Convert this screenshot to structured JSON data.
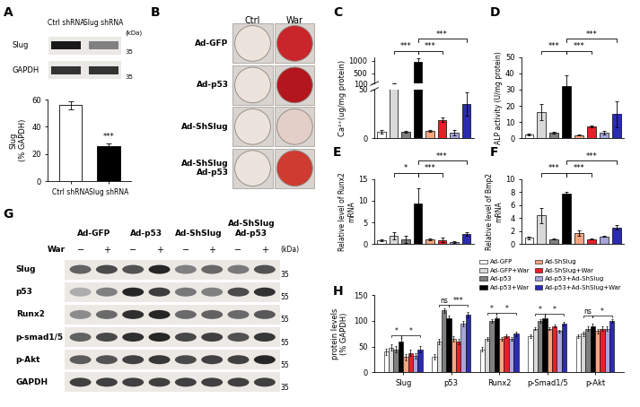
{
  "chart_data": [
    {
      "panel_label": "A",
      "type": "bar",
      "categories": [
        "Ctrl shRNA",
        "Slug shRNA"
      ],
      "values": [
        56,
        26
      ],
      "errors": [
        3,
        2
      ],
      "colors": [
        "#ffffff",
        "#000000"
      ],
      "ylabel": "Slug\n(% GAPDH)",
      "ylim": [
        0,
        60
      ],
      "yticks": [
        0,
        20,
        40,
        60
      ],
      "annotations": [
        {
          "text": "***",
          "category": "Slug shRNA"
        }
      ]
    },
    {
      "panel_label": "C",
      "type": "bar",
      "categories": [
        null,
        null,
        null,
        null,
        null,
        null,
        null,
        null
      ],
      "values": [
        7,
        105,
        7,
        950,
        8,
        19,
        6,
        35
      ],
      "errors": [
        2,
        15,
        1,
        150,
        1,
        2,
        3,
        12
      ],
      "colors": [
        "#ffffff",
        "#d9d9d9",
        "#7f7f7f",
        "#000000",
        "#f4a582",
        "#e8202a",
        "#a6a6d8",
        "#2b2bb0"
      ],
      "ylabel": "Ca²⁺(ug/mg protein)",
      "ylim": [
        [
          0,
          50
        ],
        [
          100,
          1150
        ]
      ],
      "yticks": [
        [
          0,
          50
        ],
        [
          100,
          500,
          1000
        ]
      ],
      "tick_labels": "y",
      "annotations": [
        {
          "text": "***",
          "between": [
            1,
            3
          ]
        },
        {
          "text": "***",
          "between": [
            3,
            5
          ]
        },
        {
          "text": "***",
          "between": [
            3,
            7
          ]
        }
      ]
    },
    {
      "panel_label": "D",
      "type": "bar",
      "categories": [
        null,
        null,
        null,
        null,
        null,
        null,
        null,
        null
      ],
      "values": [
        2.5,
        16,
        3.5,
        32,
        2,
        7.5,
        3.5,
        15
      ],
      "errors": [
        0.5,
        5,
        0.5,
        7,
        0.3,
        0.5,
        1,
        8
      ],
      "colors": [
        "#ffffff",
        "#d9d9d9",
        "#7f7f7f",
        "#000000",
        "#f4a582",
        "#e8202a",
        "#a6a6d8",
        "#2b2bb0"
      ],
      "ylabel": "ALP activity (U/mg protein)",
      "ylim": [
        0,
        50
      ],
      "yticks": [
        0,
        10,
        20,
        30,
        40,
        50
      ],
      "tick_labels": "y",
      "annotations": [
        {
          "text": "***",
          "between": [
            1,
            3
          ]
        },
        {
          "text": "***",
          "between": [
            3,
            5
          ]
        },
        {
          "text": "***",
          "between": [
            3,
            7
          ]
        }
      ]
    },
    {
      "panel_label": "E",
      "type": "bar",
      "categories": [
        null,
        null,
        null,
        null,
        null,
        null,
        null,
        null
      ],
      "values": [
        1,
        2,
        1.1,
        9.3,
        1.2,
        1.0,
        0.5,
        2.3
      ],
      "errors": [
        0.2,
        0.8,
        0.8,
        3.5,
        0.2,
        0.6,
        0.2,
        0.4
      ],
      "colors": [
        "#ffffff",
        "#d9d9d9",
        "#7f7f7f",
        "#000000",
        "#f4a582",
        "#e8202a",
        "#a6a6d8",
        "#2b2bb0"
      ],
      "ylabel": "Relative level of Runx2\nmRNA",
      "ylim": [
        0,
        15
      ],
      "yticks": [
        0,
        5,
        10,
        15
      ],
      "tick_labels": "y",
      "annotations": [
        {
          "text": "*",
          "between": [
            1,
            3
          ]
        },
        {
          "text": "***",
          "between": [
            3,
            5
          ]
        },
        {
          "text": "***",
          "between": [
            3,
            7
          ]
        }
      ]
    },
    {
      "panel_label": "F",
      "type": "bar",
      "categories": [
        null,
        null,
        null,
        null,
        null,
        null,
        null,
        null
      ],
      "values": [
        1,
        4.4,
        0.8,
        7.7,
        1.7,
        0.8,
        1.2,
        2.6
      ],
      "errors": [
        0.2,
        1.2,
        0.1,
        0.3,
        0.4,
        0.1,
        0.1,
        0.3
      ],
      "colors": [
        "#ffffff",
        "#d9d9d9",
        "#7f7f7f",
        "#000000",
        "#f4a582",
        "#e8202a",
        "#a6a6d8",
        "#2b2bb0"
      ],
      "ylabel": "Relative level of Bmp2\nmRNA",
      "ylim": [
        0,
        10
      ],
      "yticks": [
        0,
        2,
        4,
        6,
        8,
        10
      ],
      "tick_labels": "y",
      "annotations": [
        {
          "text": "***",
          "between": [
            1,
            3
          ]
        },
        {
          "text": "***",
          "between": [
            3,
            5
          ]
        },
        {
          "text": "***",
          "between": [
            3,
            7
          ]
        }
      ]
    },
    {
      "panel_label": "H",
      "type": "bar",
      "categories": [
        "Slug",
        "p53",
        "Runx2",
        "p-Smad1/5",
        "p-Akt"
      ],
      "ylabel": "protein levels\n(% GAPDH)",
      "ylim": [
        0,
        150
      ],
      "yticks": [
        0,
        50,
        100,
        150
      ],
      "legend": "lower right",
      "series": [
        {
          "name": "Ad-GFP",
          "color": "#ffffff",
          "values": [
            40,
            30,
            45,
            70,
            70
          ],
          "errors": [
            6,
            5,
            4,
            3,
            4
          ]
        },
        {
          "name": "Ad-GFP+War",
          "color": "#d9d9d9",
          "values": [
            48,
            60,
            65,
            85,
            75
          ],
          "errors": [
            6,
            5,
            4,
            3,
            4
          ]
        },
        {
          "name": "Ad-p53",
          "color": "#7f7f7f",
          "values": [
            45,
            120,
            100,
            100,
            85
          ],
          "errors": [
            6,
            5,
            4,
            3,
            4
          ]
        },
        {
          "name": "Ad-p53+War",
          "color": "#000000",
          "values": [
            60,
            105,
            105,
            105,
            90
          ],
          "errors": [
            6,
            5,
            4,
            3,
            4
          ]
        },
        {
          "name": "Ad-ShSlug",
          "color": "#f4a582",
          "values": [
            30,
            65,
            65,
            85,
            80
          ],
          "errors": [
            6,
            5,
            4,
            3,
            4
          ]
        },
        {
          "name": "Ad-ShSlug+War",
          "color": "#e8202a",
          "values": [
            38,
            60,
            70,
            90,
            85
          ],
          "errors": [
            6,
            5,
            4,
            3,
            4
          ]
        },
        {
          "name": "Ad-p53+Ad-ShSlug",
          "color": "#a6a6d8",
          "values": [
            32,
            95,
            65,
            80,
            85
          ],
          "errors": [
            6,
            5,
            4,
            3,
            4
          ]
        },
        {
          "name": "Ad-p53+Ad-ShSlug+War",
          "color": "#2b2bb0",
          "values": [
            45,
            112,
            75,
            95,
            100
          ],
          "errors": [
            6,
            5,
            4,
            3,
            4
          ]
        }
      ],
      "annotations": [
        {
          "category": "Slug",
          "between": [
            "Ad-GFP+War",
            "Ad-p53+War"
          ],
          "text": "*"
        },
        {
          "category": "Slug",
          "between": [
            "Ad-p53+War",
            "Ad-p53+Ad-ShSlug+War"
          ],
          "text": "*"
        },
        {
          "category": "p53",
          "between": [
            "Ad-GFP+War",
            "Ad-p53+War"
          ],
          "text": "ns"
        },
        {
          "category": "p53",
          "between": [
            "Ad-p53+War",
            "Ad-p53+Ad-ShSlug+War"
          ],
          "text": "***"
        },
        {
          "category": "Runx2",
          "between": [
            "Ad-GFP+War",
            "Ad-p53+War"
          ],
          "text": "*"
        },
        {
          "category": "Runx2",
          "between": [
            "Ad-p53+War",
            "Ad-p53+Ad-ShSlug+War"
          ],
          "text": "*"
        },
        {
          "category": "p-Smad1/5",
          "between": [
            "Ad-GFP+War",
            "Ad-p53+War"
          ],
          "text": "*"
        },
        {
          "category": "p-Smad1/5",
          "between": [
            "Ad-p53+War",
            "Ad-p53+Ad-ShSlug+War"
          ],
          "text": "*"
        },
        {
          "category": "p-Akt",
          "between": [
            "Ad-GFP+War",
            "Ad-p53+War"
          ],
          "text": "ns"
        },
        {
          "category": "p-Akt",
          "between": [
            "Ad-p53+War",
            "Ad-p53+Ad-ShSlug+War"
          ],
          "text": "*"
        }
      ]
    }
  ],
  "blots": [
    {
      "panel_label": "A",
      "lanes": [
        "Ctrl shRNA",
        "Slug shRNA"
      ],
      "rows": [
        {
          "name": "Slug",
          "kda": 35
        },
        {
          "name": "GAPDH",
          "kda": 35
        }
      ],
      "kda_header": "(kDa)"
    },
    {
      "panel_label": "G",
      "groups": [
        "Ad-GFP",
        "Ad-p53",
        "Ad-ShSlug",
        "Ad-ShSlug\nAd-p53"
      ],
      "treatment": "War",
      "states": [
        "−",
        "+"
      ],
      "rows": [
        {
          "name": "Slug",
          "kda": 35
        },
        {
          "name": "p53",
          "kda": 55
        },
        {
          "name": "Runx2",
          "kda": 55
        },
        {
          "name": "p-smad1/5",
          "kda": 55
        },
        {
          "name": "p-Akt",
          "kda": 55
        },
        {
          "name": "GAPDH",
          "kda": 35
        }
      ],
      "kda_header": "(kDa)"
    }
  ],
  "plates": {
    "panel_label": "B",
    "columns": [
      "Ctrl",
      "War"
    ],
    "rows": [
      "Ad-GFP",
      "Ad-p53",
      "Ad-ShSlug",
      "Ad-ShSlug\nAd-p53"
    ]
  }
}
